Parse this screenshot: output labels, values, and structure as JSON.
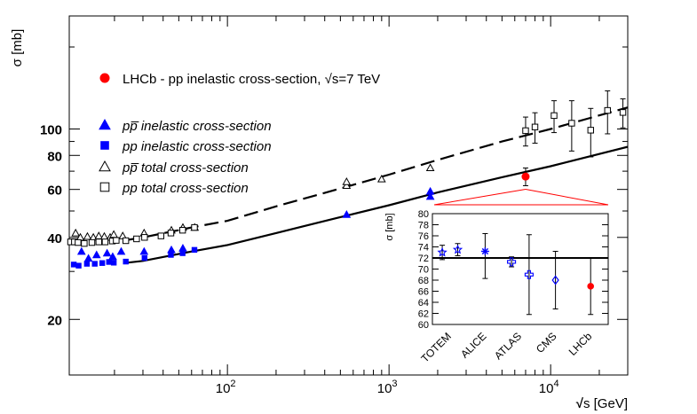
{
  "chart_data": [
    {
      "type": "scatter",
      "role": "main",
      "ylabel": "σ [mb]",
      "xlabel_prefix": "√",
      "xlabel": "s [GeV]",
      "x_scale": "log",
      "y_scale": "log",
      "xlim": [
        10.5,
        30000
      ],
      "ylim": [
        12.5,
        260
      ],
      "x_ticks": [
        {
          "value": 100,
          "base": "10",
          "exp": "2"
        },
        {
          "value": 1000,
          "base": "10",
          "exp": "3"
        },
        {
          "value": 10000,
          "base": "10",
          "exp": "4"
        }
      ],
      "y_ticks": [
        {
          "value": 20,
          "label": "20"
        },
        {
          "value": 40,
          "label": "40"
        },
        {
          "value": 60,
          "label": "60"
        },
        {
          "value": 80,
          "label": "80"
        },
        {
          "value": 100,
          "label": "100"
        }
      ],
      "legend": [
        {
          "marker": "filled-circle",
          "color": "#ff0000",
          "text": "LHCb - pp inelastic cross-section, √s=7 TeV"
        },
        {
          "marker": "filled-triangle",
          "color": "#0000ff",
          "text": "pp̅ inelastic cross-section"
        },
        {
          "marker": "filled-square",
          "color": "#0000ff",
          "text": "pp inelastic cross-section"
        },
        {
          "marker": "open-triangle",
          "color": "#000000",
          "text": "pp̅ total cross-section"
        },
        {
          "marker": "open-square",
          "color": "#000000",
          "text": "pp total cross-section"
        }
      ],
      "curves": [
        {
          "name": "total cross-section fit",
          "style": "dashed",
          "x": [
            23,
            30,
            60,
            100,
            200,
            500,
            1000,
            2000,
            5000,
            10000,
            30000
          ],
          "y": [
            39,
            40,
            43.5,
            46,
            52,
            60.5,
            68,
            77,
            90,
            100,
            120
          ]
        },
        {
          "name": "inelastic cross-section fit",
          "style": "solid",
          "x": [
            23,
            30,
            60,
            100,
            200,
            500,
            1000,
            2000,
            5000,
            10000,
            30000
          ],
          "y": [
            32.2,
            32.8,
            35.5,
            37.5,
            41.5,
            47.5,
            52.5,
            58.5,
            66.5,
            73,
            86
          ]
        }
      ],
      "series": [
        {
          "name": "pp̅ inelastic cross-section",
          "marker": "filled-triangle",
          "color": "#0000ff",
          "points": [
            {
              "x": 12.5,
              "y": 35.5
            },
            {
              "x": 13.8,
              "y": 33.5
            },
            {
              "x": 15.5,
              "y": 34.5
            },
            {
              "x": 18,
              "y": 35
            },
            {
              "x": 19.5,
              "y": 34
            },
            {
              "x": 22,
              "y": 35.5
            },
            {
              "x": 30.5,
              "y": 35.5
            },
            {
              "x": 45,
              "y": 36
            },
            {
              "x": 53,
              "y": 36.5
            },
            {
              "x": 546,
              "y": 48.5
            },
            {
              "x": 1800,
              "y": 56.5
            },
            {
              "x": 1800,
              "y": 59
            }
          ]
        },
        {
          "name": "pp inelastic cross-section",
          "marker": "filled-square",
          "color": "#0000ff",
          "points": [
            {
              "x": 11.2,
              "y": 31.8
            },
            {
              "x": 12,
              "y": 31.5
            },
            {
              "x": 13.5,
              "y": 32
            },
            {
              "x": 15.1,
              "y": 32
            },
            {
              "x": 16.8,
              "y": 32.2
            },
            {
              "x": 18.5,
              "y": 32.5
            },
            {
              "x": 19.8,
              "y": 32.3
            },
            {
              "x": 23.5,
              "y": 32.6
            },
            {
              "x": 30.7,
              "y": 33.6
            },
            {
              "x": 44.7,
              "y": 34.5
            },
            {
              "x": 52.8,
              "y": 35
            },
            {
              "x": 62.5,
              "y": 36
            }
          ]
        },
        {
          "name": "pp̅ total cross-section",
          "marker": "open-triangle",
          "color": "#000000",
          "points": [
            {
              "x": 11.5,
              "y": 41.5
            },
            {
              "x": 12.3,
              "y": 40
            },
            {
              "x": 13.6,
              "y": 40.3
            },
            {
              "x": 14.8,
              "y": 40
            },
            {
              "x": 16,
              "y": 40.5
            },
            {
              "x": 17.3,
              "y": 40.3
            },
            {
              "x": 18.8,
              "y": 40
            },
            {
              "x": 19.8,
              "y": 41
            },
            {
              "x": 22.5,
              "y": 40.5
            },
            {
              "x": 30.5,
              "y": 41.5
            },
            {
              "x": 45,
              "y": 42.5
            },
            {
              "x": 53,
              "y": 43.5
            },
            {
              "x": 62.7,
              "y": 43.5
            },
            {
              "x": 546,
              "y": 62
            },
            {
              "x": 546,
              "y": 64
            },
            {
              "x": 900,
              "y": 65.5
            },
            {
              "x": 1800,
              "y": 72
            }
          ]
        },
        {
          "name": "pp total cross-section",
          "marker": "open-square",
          "color": "#000000",
          "points": [
            {
              "x": 10.7,
              "y": 38.5
            },
            {
              "x": 11.3,
              "y": 38.5
            },
            {
              "x": 11.9,
              "y": 38.3
            },
            {
              "x": 13,
              "y": 38
            },
            {
              "x": 14.5,
              "y": 38.3
            },
            {
              "x": 16,
              "y": 38.5
            },
            {
              "x": 17.5,
              "y": 38.5
            },
            {
              "x": 19.4,
              "y": 38.8
            },
            {
              "x": 20.5,
              "y": 39
            },
            {
              "x": 23.5,
              "y": 38.9
            },
            {
              "x": 27.4,
              "y": 39.5
            },
            {
              "x": 30.7,
              "y": 40
            },
            {
              "x": 38.8,
              "y": 40.5
            },
            {
              "x": 44.7,
              "y": 41.5
            },
            {
              "x": 52.8,
              "y": 42.5
            },
            {
              "x": 62.5,
              "y": 43.5
            },
            {
              "x": 7000,
              "y": 98.6,
              "yerr": 12
            },
            {
              "x": 8000,
              "y": 101.7,
              "yerr": 13
            },
            {
              "x": 10500,
              "y": 112,
              "yerr": 15
            },
            {
              "x": 13500,
              "y": 105,
              "yerr": 22
            },
            {
              "x": 17700,
              "y": 99,
              "yerr": 20
            },
            {
              "x": 22500,
              "y": 117,
              "yerr": 21
            },
            {
              "x": 28000,
              "y": 115,
              "yerr": 14
            }
          ]
        },
        {
          "name": "LHCb - pp inelastic cross-section, √s=7 TeV",
          "marker": "filled-circle",
          "color": "#ff0000",
          "points": [
            {
              "x": 7000,
              "y": 66.9,
              "yerr": 5
            }
          ]
        }
      ]
    },
    {
      "type": "scatter",
      "role": "inset",
      "ylabel": "σ [mb]",
      "ylim": [
        60,
        80
      ],
      "y_ticks": [
        60,
        62,
        64,
        66,
        68,
        70,
        72,
        74,
        76,
        78,
        80
      ],
      "categories": [
        "TOTEM",
        "ALICE",
        "ATLAS",
        "CMS",
        "LHCb"
      ],
      "reference_line": 72,
      "points": [
        {
          "category": "TOTEM",
          "offset": -0.22,
          "y": 73.0,
          "err_lo": 1.3,
          "err_hi": 1.3,
          "marker": "open-star",
          "color": "#0000ff"
        },
        {
          "category": "TOTEM",
          "offset": 0.22,
          "y": 73.5,
          "err_lo": 1.1,
          "err_hi": 1.1,
          "marker": "open-star",
          "color": "#0000ff"
        },
        {
          "category": "ALICE",
          "offset": 0,
          "y": 73.2,
          "err_lo": 4.9,
          "err_hi": 3.2,
          "marker": "asterisk",
          "color": "#0000ff"
        },
        {
          "category": "ATLAS",
          "offset": -0.25,
          "y": 71.3,
          "err_lo": 0.9,
          "err_hi": 0.9,
          "marker": "open-cross",
          "color": "#0000ff"
        },
        {
          "category": "ATLAS",
          "offset": 0.25,
          "y": 69.0,
          "err_lo": 7.2,
          "err_hi": 7.2,
          "marker": "open-cross",
          "color": "#0000ff"
        },
        {
          "category": "CMS",
          "offset": 0,
          "y": 68.0,
          "err_lo": 5.2,
          "err_hi": 5.2,
          "marker": "open-diamond",
          "color": "#0000ff"
        },
        {
          "category": "LHCb",
          "offset": 0,
          "y": 66.9,
          "err_lo": 5.1,
          "err_hi": 5.1,
          "marker": "filled-circle",
          "color": "#ff0000"
        }
      ]
    }
  ]
}
